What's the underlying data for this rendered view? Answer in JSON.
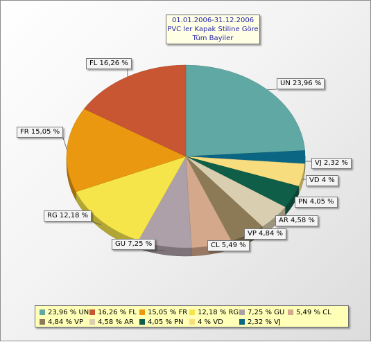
{
  "chart_data": {
    "type": "pie",
    "title": [
      "01.01.2006-31.12.2006",
      "PVC ler Kapak Stiline Göre",
      "Tüm Bayiler"
    ],
    "slices": [
      {
        "name": "UN",
        "value": 23.96,
        "label": "UN 23,96 %",
        "legend": "23,96 % UN",
        "color": "#5fa8a3"
      },
      {
        "name": "VJ",
        "value": 2.32,
        "label": "VJ 2,32 %",
        "legend": "2,32 % VJ",
        "color": "#0b6684"
      },
      {
        "name": "VD",
        "value": 4,
        "label": "VD 4 %",
        "legend": "4 % VD",
        "color": "#f7dd7e"
      },
      {
        "name": "PN",
        "value": 4.05,
        "label": "PN 4,05 %",
        "legend": "4,05 % PN",
        "color": "#0e5e48"
      },
      {
        "name": "AR",
        "value": 4.58,
        "label": "AR 4,58 %",
        "legend": "4,58 % AR",
        "color": "#d9ceb0"
      },
      {
        "name": "VP",
        "value": 4.84,
        "label": "VP 4,84 %",
        "legend": "4,84 % VP",
        "color": "#8c7a57"
      },
      {
        "name": "CL",
        "value": 5.49,
        "label": "CL 5,49 %",
        "legend": "5,49 % CL",
        "color": "#d4a88a"
      },
      {
        "name": "GU",
        "value": 7.25,
        "label": "GU 7,25 %",
        "legend": "7,25 % GU",
        "color": "#ada0a8"
      },
      {
        "name": "RG",
        "value": 12.18,
        "label": "RG 12,18 %",
        "legend": "12,18 % RG",
        "color": "#f6e54a"
      },
      {
        "name": "FR",
        "value": 15.05,
        "label": "FR 15,05 %",
        "legend": "15,05 % FR",
        "color": "#e9980f"
      },
      {
        "name": "FL",
        "value": 16.26,
        "label": "FL 16,26 %",
        "legend": "16,26 % FL",
        "color": "#c85632"
      }
    ],
    "legend_order": [
      [
        "UN",
        "FL",
        "FR",
        "RG",
        "GU",
        "CL"
      ],
      [
        "VP",
        "AR",
        "PN",
        "VD",
        "VJ"
      ]
    ],
    "legend_placement": "bottom"
  }
}
